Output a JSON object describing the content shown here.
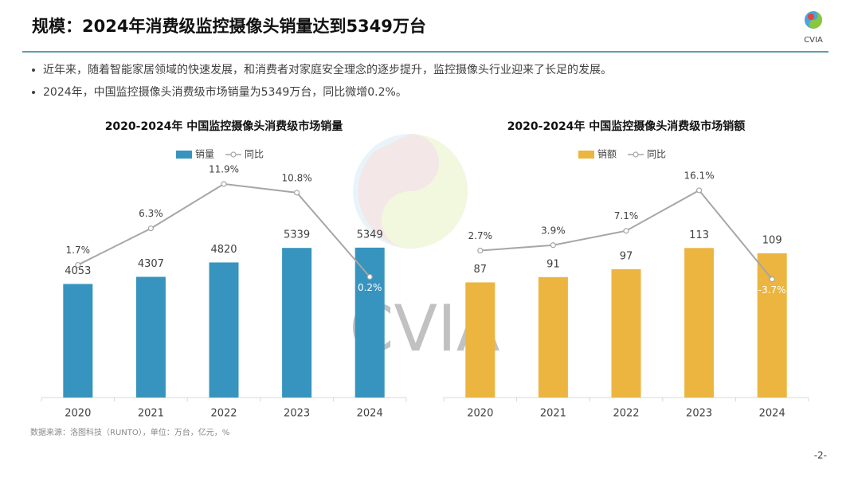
{
  "header": {
    "title": "规模：2024年消费级监控摄像头销量达到5349万台",
    "logo_text": "CVIA"
  },
  "bullets": [
    "近年来，随着智能家居领域的快速发展，和消费者对家庭安全理念的逐步提升，监控摄像头行业迎来了长足的发展。",
    "2024年，中国监控摄像头消费级市场销量为5349万台，同比微增0.2%。"
  ],
  "source": "数据来源：洛图科技（RUNTO），单位：万台，亿元，%",
  "page_number": "-2-",
  "chart_data": [
    {
      "type": "bar",
      "title": "2020-2024年 中国监控摄像头消费级市场销量",
      "categories": [
        "2020",
        "2021",
        "2022",
        "2023",
        "2024"
      ],
      "ylim": [
        0,
        8500
      ],
      "y2lim": [
        -15,
        15
      ],
      "series": [
        {
          "name": "销量",
          "type": "bar",
          "color": "#3794be",
          "values": [
            4053,
            4307,
            4820,
            5339,
            5349
          ]
        },
        {
          "name": "同比",
          "type": "line",
          "axis": "y2",
          "color": "#a6a6a6",
          "values": [
            1.7,
            6.3,
            11.9,
            10.8,
            0.2
          ],
          "value_labels": [
            "1.7%",
            "6.3%",
            "11.9%",
            "10.8%",
            "0.2%"
          ]
        }
      ]
    },
    {
      "type": "bar",
      "title": "2020-2024年 中国监控摄像头消费级市场销额",
      "categories": [
        "2020",
        "2021",
        "2022",
        "2023",
        "2024"
      ],
      "ylim": [
        0,
        180
      ],
      "y2lim": [
        -30,
        23
      ],
      "series": [
        {
          "name": "销额",
          "type": "bar",
          "color": "#ebb540",
          "values": [
            87,
            91,
            97,
            113,
            109
          ]
        },
        {
          "name": "同比",
          "type": "line",
          "axis": "y2",
          "color": "#a6a6a6",
          "values": [
            2.7,
            3.9,
            7.1,
            16.1,
            -3.7
          ],
          "value_labels": [
            "2.7%",
            "3.9%",
            "7.1%",
            "16.1%",
            "-3.7%"
          ]
        }
      ]
    }
  ]
}
